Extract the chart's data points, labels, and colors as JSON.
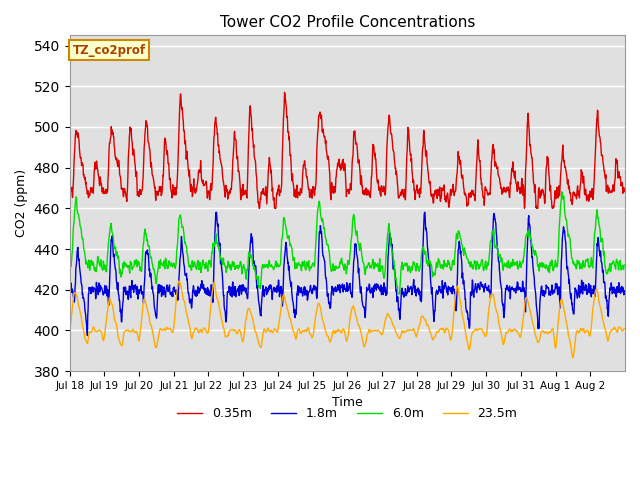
{
  "title": "Tower CO2 Profile Concentrations",
  "xlabel": "Time",
  "ylabel": "CO2 (ppm)",
  "ylim": [
    380,
    545
  ],
  "yticks": [
    380,
    400,
    420,
    440,
    460,
    480,
    500,
    520,
    540
  ],
  "bg_color": "#e0e0e0",
  "fig_color": "#ffffff",
  "legend_label": "TZ_co2prof",
  "series": {
    "0.35m": {
      "color": "#dd0000",
      "lw": 1.0
    },
    "1.8m": {
      "color": "#0000dd",
      "lw": 1.0
    },
    "6.0m": {
      "color": "#00dd00",
      "lw": 1.0
    },
    "23.5m": {
      "color": "#ffaa00",
      "lw": 1.0
    }
  },
  "xtick_labels": [
    "Jul 18",
    "Jul 19",
    "Jul 20",
    "Jul 21",
    "Jul 22",
    "Jul 23",
    "Jul 24",
    "Jul 25",
    "Jul 26",
    "Jul 27",
    "Jul 28",
    "Jul 29",
    "Jul 30",
    "Jul 31",
    "Aug 1",
    "Aug 2"
  ],
  "num_days": 16,
  "pts_per_day": 96
}
